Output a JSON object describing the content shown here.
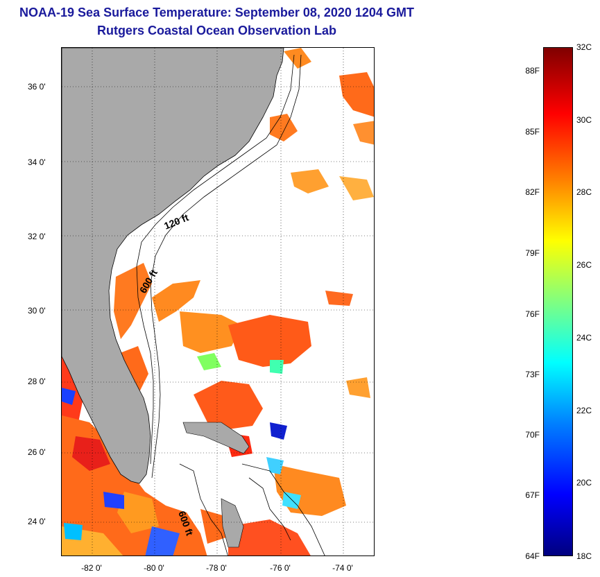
{
  "title": {
    "line1": "NOAA-19 Sea Surface Temperature:  September 08, 2020 1204 GMT",
    "line2": "Rutgers Coastal Ocean Observation Lab"
  },
  "map": {
    "lat_labels": [
      "36 0'",
      "34 0'",
      "32 0'",
      "30 0'",
      "28 0'",
      "26 0'",
      "24 0'"
    ],
    "lon_labels": [
      "-82 0'",
      "-80 0'",
      "-78 0'",
      "-76 0'",
      "-74 0'"
    ],
    "contour_labels": {
      "c120": "120 ft",
      "c600a": "600 ft",
      "c600b": "600 ft"
    },
    "colors": {
      "land": "#a9a9a9",
      "no_data": "#ffffff",
      "grid": "#000000"
    }
  },
  "colorbar": {
    "celsius": [
      "32C",
      "30C",
      "28C",
      "26C",
      "24C",
      "22C",
      "20C",
      "18C"
    ],
    "fahrenheit": [
      "88F",
      "85F",
      "82F",
      "79F",
      "76F",
      "73F",
      "70F",
      "67F",
      "64F"
    ]
  }
}
